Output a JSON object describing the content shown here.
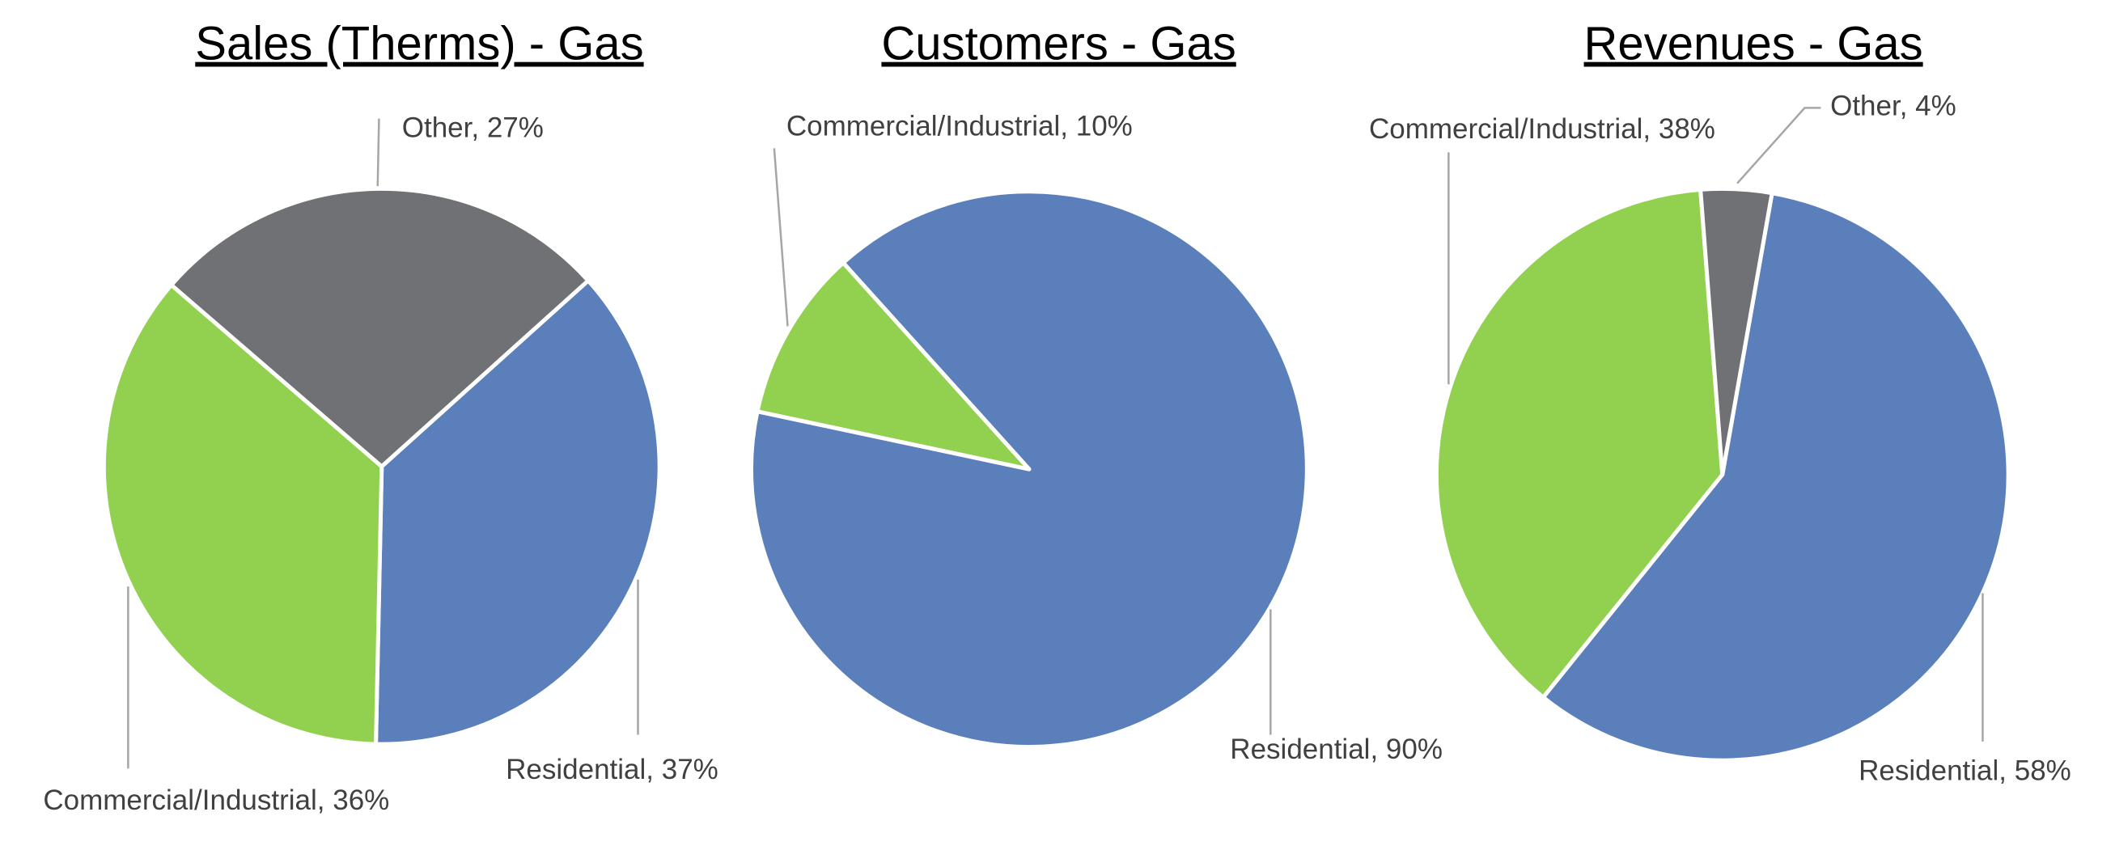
{
  "chart_data": [
    {
      "type": "pie",
      "title": "Sales (Therms) - Gas",
      "categories": [
        "Residential",
        "Commercial/Industrial",
        "Other"
      ],
      "values": [
        37,
        36,
        27
      ],
      "value_labels": [
        "Residential, 37%",
        "Commercial/Industrial, 36%",
        "Other, 27%"
      ],
      "colors": [
        "#5a7fba",
        "#92d050",
        "#707174"
      ]
    },
    {
      "type": "pie",
      "title": "Customers - Gas",
      "categories": [
        "Residential",
        "Commercial/Industrial"
      ],
      "values": [
        90,
        10
      ],
      "value_labels": [
        "Residential, 90%",
        "Commercial/Industrial, 10%"
      ],
      "colors": [
        "#5a7fba",
        "#92d050"
      ]
    },
    {
      "type": "pie",
      "title": "Revenues - Gas",
      "categories": [
        "Residential",
        "Commercial/Industrial",
        "Other"
      ],
      "values": [
        58,
        38,
        4
      ],
      "value_labels": [
        "Residential, 58%",
        "Commercial/Industrial, 38%",
        "Other, 4%"
      ],
      "colors": [
        "#5a7fba",
        "#92d050",
        "#707174"
      ]
    }
  ]
}
